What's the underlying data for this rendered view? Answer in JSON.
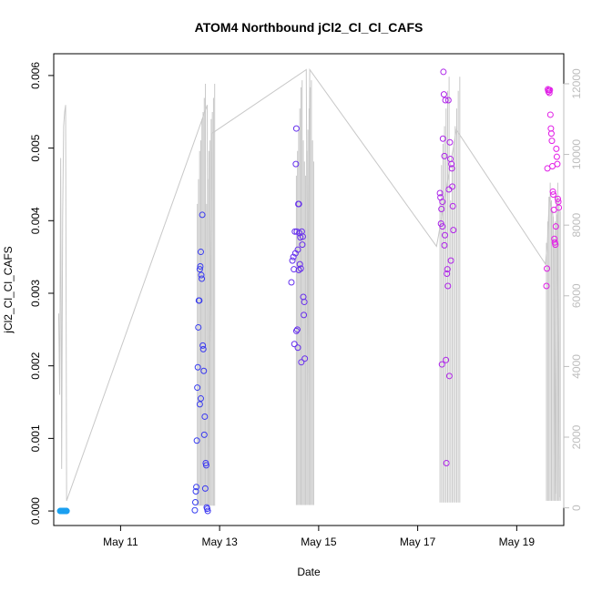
{
  "chart_data": {
    "type": "scatter",
    "title": "ATOM4 Northbound jCl2_Cl_Cl_CAFS",
    "xlabel": "Date",
    "ylabel": "jCl2_Cl_Cl_CAFS",
    "x_range_days": [
      9.65,
      19.95
    ],
    "ylim": [
      -0.0002,
      0.0063
    ],
    "y2lim": [
      -500,
      12850
    ],
    "x_ticks": [
      {
        "day": 11,
        "label": "May 11"
      },
      {
        "day": 13,
        "label": "May 13"
      },
      {
        "day": 15,
        "label": "May 15"
      },
      {
        "day": 17,
        "label": "May 17"
      },
      {
        "day": 19,
        "label": "May 19"
      }
    ],
    "y_ticks": [
      {
        "value": 0.0,
        "label": "0.000"
      },
      {
        "value": 0.001,
        "label": "0.001"
      },
      {
        "value": 0.002,
        "label": "0.002"
      },
      {
        "value": 0.003,
        "label": "0.003"
      },
      {
        "value": 0.004,
        "label": "0.004"
      },
      {
        "value": 0.005,
        "label": "0.005"
      },
      {
        "value": 0.006,
        "label": "0.006"
      }
    ],
    "y2_ticks": [
      {
        "value": 0,
        "label": "0"
      },
      {
        "value": 2000,
        "label": "2000"
      },
      {
        "value": 4000,
        "label": "4000"
      },
      {
        "value": 6000,
        "label": "6000"
      },
      {
        "value": 8000,
        "label": "8000"
      },
      {
        "value": 10000,
        "label": "10000"
      },
      {
        "value": 12000,
        "label": "12000"
      }
    ],
    "line_series": {
      "color": "#c8c8c8",
      "points": [
        [
          9.75,
          5500
        ],
        [
          9.77,
          3200
        ],
        [
          9.79,
          9900
        ],
        [
          9.81,
          1100
        ],
        [
          9.83,
          8200
        ],
        [
          9.85,
          10800
        ],
        [
          9.87,
          11200
        ],
        [
          9.89,
          11400
        ],
        [
          9.91,
          200
        ],
        [
          12.75,
          11400
        ],
        [
          12.77,
          100
        ],
        [
          12.85,
          10600
        ],
        [
          14.75,
          12400
        ],
        [
          14.78,
          3000
        ],
        [
          14.82,
          12400
        ],
        [
          17.38,
          7400
        ],
        [
          17.42,
          7700
        ],
        [
          17.78,
          10700
        ],
        [
          19.58,
          6900
        ],
        [
          19.62,
          7500
        ],
        [
          19.66,
          8800
        ],
        [
          19.7,
          8500
        ],
        [
          19.74,
          8200
        ],
        [
          19.78,
          400
        ],
        [
          19.82,
          8300
        ],
        [
          19.86,
          300
        ]
      ],
      "spikes": [
        {
          "range": [
            12.55,
            12.9
          ],
          "count": 16,
          "low": 60,
          "high": [
            8600,
            9300,
            10100,
            10400,
            11000,
            11200,
            11600,
            12000
          ]
        },
        {
          "range": [
            14.55,
            14.9
          ],
          "count": 16,
          "low": 80,
          "high": [
            9400,
            10100,
            10700,
            11300,
            11900,
            12100,
            10400,
            9800
          ]
        },
        {
          "range": [
            17.45,
            17.85
          ],
          "count": 14,
          "low": 150,
          "high": [
            8700,
            9700,
            10300,
            10800,
            11300,
            11800,
            12200
          ]
        },
        {
          "range": [
            19.6,
            19.88
          ],
          "count": 12,
          "low": 200,
          "high": [
            7500,
            8100,
            8800,
            9200,
            8700,
            8400
          ]
        }
      ]
    },
    "scatter_series": {
      "color_start": "#1aa6f0",
      "color_mid": "#3a35f0",
      "color_end": "#e61ce6",
      "points": [
        [
          9.78,
          0.0
        ],
        [
          9.79,
          0.0
        ],
        [
          9.8,
          0.0
        ],
        [
          9.81,
          0.0
        ],
        [
          9.82,
          0.0
        ],
        [
          9.83,
          0.0
        ],
        [
          9.84,
          0.0
        ],
        [
          9.85,
          0.0
        ],
        [
          9.86,
          0.0
        ],
        [
          9.87,
          0.0
        ],
        [
          9.88,
          0.0
        ],
        [
          9.89,
          0.0
        ],
        [
          9.9,
          0.0
        ],
        [
          9.91,
          0.0
        ],
        [
          12.5,
          1e-05
        ],
        [
          12.51,
          0.00012
        ],
        [
          12.52,
          0.00027
        ],
        [
          12.53,
          0.00033
        ],
        [
          12.54,
          0.00097
        ],
        [
          12.55,
          0.0017
        ],
        [
          12.56,
          0.00198
        ],
        [
          12.57,
          0.00253
        ],
        [
          12.58,
          0.0029
        ],
        [
          12.59,
          0.0029
        ],
        [
          12.6,
          0.00333
        ],
        [
          12.61,
          0.00337
        ],
        [
          12.62,
          0.00357
        ],
        [
          12.63,
          0.00325
        ],
        [
          12.64,
          0.0032
        ],
        [
          12.65,
          0.00408
        ],
        [
          12.66,
          0.00228
        ],
        [
          12.67,
          0.00223
        ],
        [
          12.68,
          0.00193
        ],
        [
          12.69,
          0.00105
        ],
        [
          12.7,
          0.0013
        ],
        [
          12.71,
          0.00031
        ],
        [
          12.72,
          0.00066
        ],
        [
          12.73,
          0.00063
        ],
        [
          12.74,
          5e-05
        ],
        [
          12.75,
          3e-05
        ],
        [
          12.76,
          0.0
        ],
        [
          12.62,
          0.00155
        ],
        [
          12.6,
          0.00147
        ],
        [
          14.45,
          0.00315
        ],
        [
          14.47,
          0.00345
        ],
        [
          14.49,
          0.0035
        ],
        [
          14.5,
          0.00333
        ],
        [
          14.51,
          0.0023
        ],
        [
          14.52,
          0.00385
        ],
        [
          14.53,
          0.00355
        ],
        [
          14.54,
          0.00478
        ],
        [
          14.55,
          0.00527
        ],
        [
          14.56,
          0.00385
        ],
        [
          14.57,
          0.0025
        ],
        [
          14.58,
          0.0036
        ],
        [
          14.59,
          0.00423
        ],
        [
          14.6,
          0.00423
        ],
        [
          14.61,
          0.00383
        ],
        [
          14.62,
          0.0034
        ],
        [
          14.63,
          0.00377
        ],
        [
          14.64,
          0.00334
        ],
        [
          14.65,
          0.00205
        ],
        [
          14.66,
          0.00385
        ],
        [
          14.67,
          0.00367
        ],
        [
          14.68,
          0.00378
        ],
        [
          14.69,
          0.00295
        ],
        [
          14.7,
          0.0027
        ],
        [
          14.71,
          0.00288
        ],
        [
          14.72,
          0.0021
        ],
        [
          14.58,
          0.00225
        ],
        [
          14.55,
          0.00248
        ],
        [
          14.6,
          0.00332
        ],
        [
          17.45,
          0.00438
        ],
        [
          17.46,
          0.00432
        ],
        [
          17.47,
          0.00396
        ],
        [
          17.48,
          0.00416
        ],
        [
          17.49,
          0.00202
        ],
        [
          17.5,
          0.00392
        ],
        [
          17.51,
          0.00513
        ],
        [
          17.52,
          0.00605
        ],
        [
          17.53,
          0.00574
        ],
        [
          17.54,
          0.00489
        ],
        [
          17.55,
          0.0038
        ],
        [
          17.56,
          0.00566
        ],
        [
          17.57,
          0.00208
        ],
        [
          17.58,
          0.00066
        ],
        [
          17.59,
          0.00327
        ],
        [
          17.6,
          0.00333
        ],
        [
          17.61,
          0.0031
        ],
        [
          17.62,
          0.00566
        ],
        [
          17.63,
          0.00443
        ],
        [
          17.64,
          0.00186
        ],
        [
          17.65,
          0.00508
        ],
        [
          17.66,
          0.00485
        ],
        [
          17.67,
          0.00345
        ],
        [
          17.68,
          0.00478
        ],
        [
          17.69,
          0.00472
        ],
        [
          17.7,
          0.00447
        ],
        [
          17.71,
          0.0042
        ],
        [
          17.72,
          0.00387
        ],
        [
          17.5,
          0.00426
        ],
        [
          17.54,
          0.00366
        ],
        [
          19.6,
          0.0031
        ],
        [
          19.61,
          0.00334
        ],
        [
          19.62,
          0.00472
        ],
        [
          19.63,
          0.00581
        ],
        [
          19.64,
          0.00578
        ],
        [
          19.65,
          0.0058
        ],
        [
          19.66,
          0.00576
        ],
        [
          19.67,
          0.0058
        ],
        [
          19.68,
          0.00546
        ],
        [
          19.69,
          0.00527
        ],
        [
          19.7,
          0.0052
        ],
        [
          19.71,
          0.0051
        ],
        [
          19.72,
          0.00475
        ],
        [
          19.73,
          0.0044
        ],
        [
          19.74,
          0.00436
        ],
        [
          19.75,
          0.00415
        ],
        [
          19.76,
          0.00375
        ],
        [
          19.77,
          0.0037
        ],
        [
          19.78,
          0.00367
        ],
        [
          19.79,
          0.00392
        ],
        [
          19.8,
          0.00499
        ],
        [
          19.81,
          0.00488
        ],
        [
          19.82,
          0.00478
        ],
        [
          19.83,
          0.0043
        ],
        [
          19.84,
          0.00426
        ],
        [
          19.85,
          0.00418
        ]
      ]
    }
  }
}
